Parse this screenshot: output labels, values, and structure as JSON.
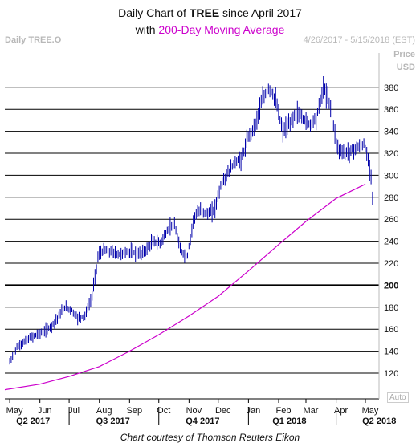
{
  "header": {
    "title_pre": "Daily Chart of ",
    "title_ticker": "TREE",
    "title_post": " since April 2017",
    "subtitle_pre": "with ",
    "subtitle_ma": "200-Day Moving Average",
    "series_label": "Daily TREE.O",
    "date_range": "4/26/2017 - 5/15/2018 (EST)",
    "price_label": "Price",
    "currency_label": "USD",
    "auto_label": "Auto"
  },
  "footer": {
    "credit": "Chart courtesy of Thomson Reuters Eikon"
  },
  "colors": {
    "price": "#0000aa",
    "ma": "#cc00cc",
    "grid": "#000000"
  },
  "chart_data": {
    "type": "line",
    "ylim": [
      100,
      400
    ],
    "yticks": [
      120,
      140,
      160,
      180,
      200,
      220,
      240,
      260,
      280,
      300,
      320,
      340,
      360,
      380
    ],
    "ytick_bold": 200,
    "month_labels": [
      "May",
      "Jun",
      "Jul",
      "Aug",
      "Sep",
      "Oct",
      "Nov",
      "Dec",
      "Jan",
      "Feb",
      "Mar",
      "Apr",
      "May"
    ],
    "quarter_labels": [
      "Q2 2017",
      "Q3 2017",
      "Q4 2017",
      "Q1 2018",
      "Q2 2018"
    ],
    "series": [
      {
        "name": "TREE",
        "style": "ohlc-bars",
        "points": [
          [
            "2017-05-01",
            130
          ],
          [
            "2017-05-08",
            143
          ],
          [
            "2017-05-15",
            148
          ],
          [
            "2017-05-22",
            152
          ],
          [
            "2017-05-29",
            155
          ],
          [
            "2017-06-05",
            158
          ],
          [
            "2017-06-12",
            162
          ],
          [
            "2017-06-19",
            170
          ],
          [
            "2017-06-26",
            180
          ],
          [
            "2017-07-03",
            178
          ],
          [
            "2017-07-10",
            170
          ],
          [
            "2017-07-17",
            172
          ],
          [
            "2017-07-24",
            188
          ],
          [
            "2017-07-31",
            228
          ],
          [
            "2017-08-07",
            232
          ],
          [
            "2017-08-14",
            230
          ],
          [
            "2017-08-21",
            228
          ],
          [
            "2017-08-28",
            230
          ],
          [
            "2017-09-04",
            230
          ],
          [
            "2017-09-11",
            228
          ],
          [
            "2017-09-18",
            232
          ],
          [
            "2017-09-25",
            240
          ],
          [
            "2017-10-02",
            238
          ],
          [
            "2017-10-09",
            248
          ],
          [
            "2017-10-16",
            258
          ],
          [
            "2017-10-23",
            232
          ],
          [
            "2017-10-30",
            225
          ],
          [
            "2017-11-06",
            262
          ],
          [
            "2017-11-13",
            268
          ],
          [
            "2017-11-20",
            265
          ],
          [
            "2017-11-27",
            268
          ],
          [
            "2017-12-04",
            292
          ],
          [
            "2017-12-11",
            302
          ],
          [
            "2017-12-18",
            312
          ],
          [
            "2017-12-25",
            315
          ],
          [
            "2018-01-01",
            335
          ],
          [
            "2018-01-08",
            346
          ],
          [
            "2018-01-15",
            368
          ],
          [
            "2018-01-22",
            380
          ],
          [
            "2018-01-29",
            368
          ],
          [
            "2018-02-05",
            340
          ],
          [
            "2018-02-12",
            346
          ],
          [
            "2018-02-19",
            358
          ],
          [
            "2018-02-26",
            352
          ],
          [
            "2018-03-05",
            346
          ],
          [
            "2018-03-12",
            353
          ],
          [
            "2018-03-19",
            380
          ],
          [
            "2018-03-26",
            364
          ],
          [
            "2018-04-02",
            325
          ],
          [
            "2018-04-09",
            320
          ],
          [
            "2018-04-16",
            322
          ],
          [
            "2018-04-23",
            325
          ],
          [
            "2018-04-30",
            328
          ],
          [
            "2018-05-07",
            300
          ],
          [
            "2018-05-09",
            272
          ]
        ]
      },
      {
        "name": "200-Day Moving Average",
        "style": "line",
        "points": [
          [
            "2017-04-26",
            105
          ],
          [
            "2017-06-01",
            110
          ],
          [
            "2017-07-01",
            117
          ],
          [
            "2017-08-01",
            126
          ],
          [
            "2017-09-01",
            140
          ],
          [
            "2017-10-01",
            155
          ],
          [
            "2017-11-01",
            172
          ],
          [
            "2017-12-01",
            190
          ],
          [
            "2018-01-01",
            213
          ],
          [
            "2018-02-01",
            237
          ],
          [
            "2018-03-01",
            258
          ],
          [
            "2018-04-01",
            279
          ],
          [
            "2018-05-01",
            292
          ]
        ]
      }
    ]
  }
}
